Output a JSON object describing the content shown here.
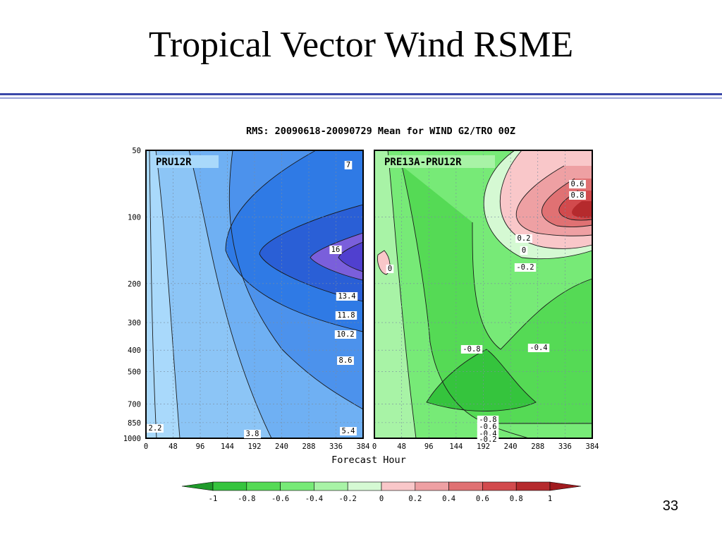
{
  "slide": {
    "title": "Tropical Vector Wind RSME",
    "page_number": "33"
  },
  "chart_data": [
    {
      "type": "heatmap",
      "title": "RMS: 20090618-20090729 Mean for WIND G2/TRO 00Z",
      "panel_label": "PRU12R",
      "xlabel": "Forecast Hour",
      "x_ticks": [
        0,
        48,
        96,
        144,
        192,
        240,
        288,
        336,
        384
      ],
      "xlim": [
        0,
        384
      ],
      "y_ticks": [
        50,
        100,
        200,
        300,
        400,
        500,
        700,
        850,
        1000
      ],
      "ylim": [
        1000,
        50
      ],
      "y_scale": "log-pressure",
      "grid": true,
      "contour_labels": [
        "7",
        "16",
        "13.4",
        "11.8",
        "10.2",
        "8.6",
        "5.4",
        "3.8",
        "2.2"
      ],
      "colors": [
        "#a9d9fb",
        "#8cc5f6",
        "#6fb0f3",
        "#4c92ec",
        "#2f7ae5",
        "#2a5fd6",
        "#7a5fdb",
        "#5040cf"
      ]
    },
    {
      "type": "heatmap",
      "panel_label": "PRE13A-PRU12R",
      "xlabel": "Forecast Hour",
      "x_ticks": [
        0,
        48,
        96,
        144,
        192,
        240,
        288,
        336,
        384
      ],
      "xlim": [
        0,
        384
      ],
      "y_ticks": [
        50,
        100,
        200,
        300,
        400,
        500,
        700,
        850,
        1000
      ],
      "ylim": [
        1000,
        50
      ],
      "y_scale": "log-pressure",
      "grid": true,
      "contour_labels": [
        "0.6",
        "0.8",
        "0.2",
        "0",
        "-0.2",
        "0",
        "-0.8",
        "-0.4",
        "-0.8",
        "-0.6",
        "-0.4",
        "-0.2"
      ],
      "colorbar": {
        "levels": [
          "-1",
          "-0.8",
          "-0.6",
          "-0.4",
          "-0.2",
          "0",
          "0.2",
          "0.4",
          "0.6",
          "0.8",
          "1"
        ],
        "colors": [
          "#1f9a2a",
          "#35c43d",
          "#55da55",
          "#77ea77",
          "#a8f3a6",
          "#d5f9d3",
          "#f9c7c9",
          "#eea0a3",
          "#e07173",
          "#d24a4d",
          "#b52a2d",
          "#a01b1f"
        ]
      }
    }
  ]
}
